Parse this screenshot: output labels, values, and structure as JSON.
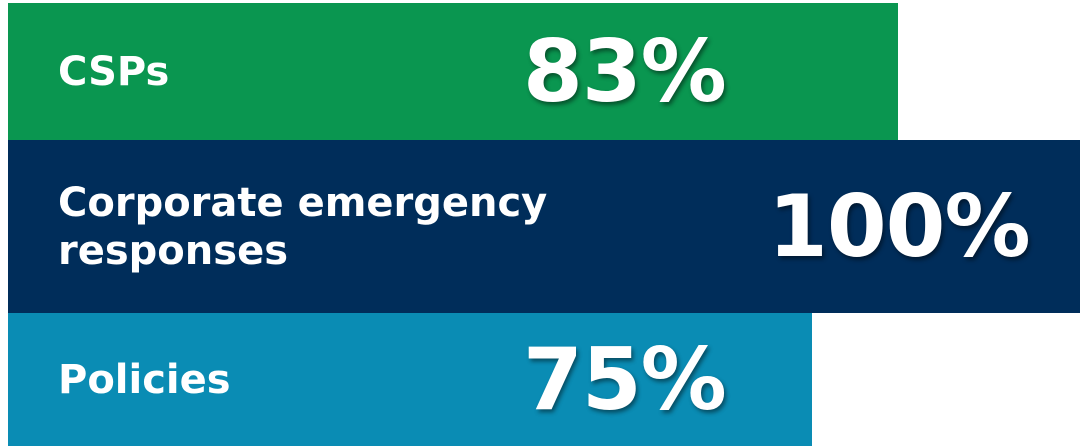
{
  "chart_data": {
    "type": "bar",
    "orientation": "horizontal",
    "categories": [
      "CSPs",
      "Corporate emergency responses",
      "Policies"
    ],
    "labels": [
      "CSPs",
      "Corporate emergency\nresponses",
      "Policies"
    ],
    "values": [
      83,
      100,
      75
    ],
    "value_labels": [
      "83%",
      "100%",
      "75%"
    ],
    "xlim": [
      0,
      100
    ],
    "colors": [
      "#0a9650",
      "#002d5a",
      "#0a8cb4"
    ],
    "grid": false,
    "legend": "none"
  }
}
